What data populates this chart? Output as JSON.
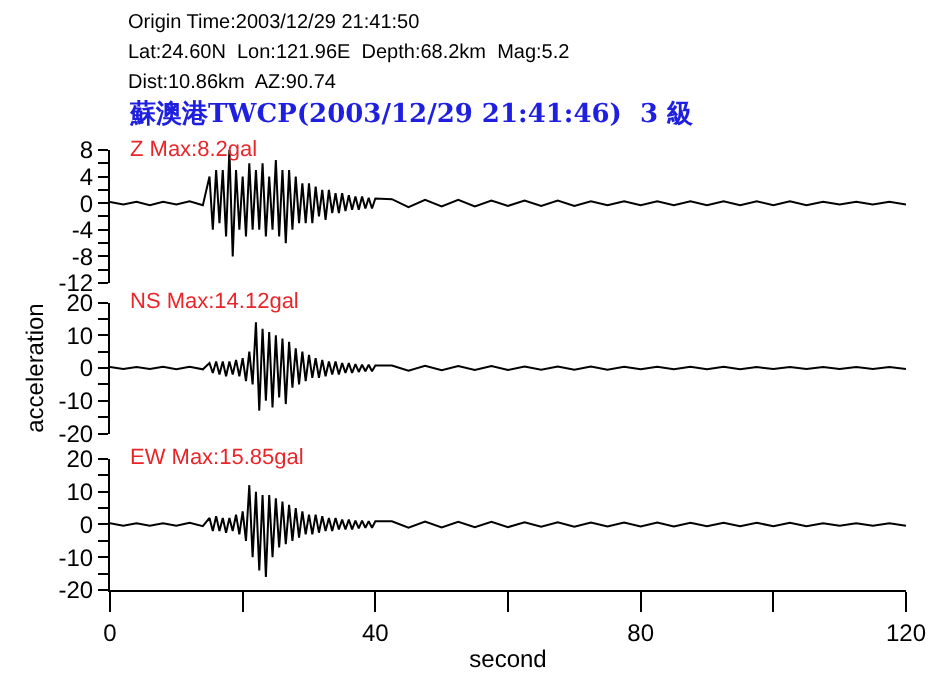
{
  "chart_data": [
    {
      "type": "line",
      "title": "蘇澳港TWCP(2003/12/29 21:41:46)  3 級",
      "annotations": [
        "Origin Time:2003/12/29 21:41:50",
        "Lat:24.60N  Lon:121.96E  Depth:68.2km  Mag:5.2",
        "Dist:10.86km  AZ:90.74",
        "Z Max:8.2gal"
      ],
      "x": [
        0,
        2,
        4,
        6,
        8,
        10,
        12,
        14,
        15,
        15.5,
        16,
        16.5,
        17,
        17.5,
        18,
        18.5,
        19,
        19.5,
        20,
        20.5,
        21,
        21.5,
        22,
        22.5,
        23,
        23.5,
        24,
        24.5,
        25,
        25.5,
        26,
        26.5,
        27,
        27.5,
        28,
        28.5,
        29,
        29.5,
        30,
        30.5,
        31,
        31.5,
        32,
        32.5,
        33,
        33.5,
        34,
        34.5,
        35,
        35.5,
        36,
        36.5,
        37,
        37.5,
        38,
        38.5,
        39,
        39.5,
        40,
        42.5,
        45,
        47.5,
        50,
        52.5,
        55,
        57.5,
        60,
        62.5,
        65,
        67.5,
        70,
        72.5,
        75,
        77.5,
        80,
        82.5,
        85,
        87.5,
        90,
        92.5,
        95,
        97.5,
        100,
        102.5,
        105,
        107.5,
        110,
        112.5,
        115,
        117.5,
        120
      ],
      "series": [
        {
          "color": "#000000",
          "values": [
            0.2,
            -0.2,
            0.2,
            -0.3,
            0.2,
            -0.2,
            0.3,
            -0.3,
            4,
            -4,
            5,
            -3,
            5,
            -5,
            8,
            -8,
            5,
            -4,
            4,
            -5,
            6,
            -4,
            5,
            -4,
            6,
            -5,
            4,
            -4,
            6.5,
            -5,
            5,
            -6,
            5,
            -4,
            4,
            -3,
            3,
            -3,
            3,
            -3,
            2.5,
            -2,
            2,
            -2.5,
            2,
            -1.5,
            1.5,
            -1.5,
            1.5,
            -1.2,
            1.2,
            -1,
            1,
            -1,
            1,
            -0.8,
            0.8,
            -0.8,
            0.7,
            0.6,
            -0.6,
            0.5,
            -0.5,
            0.5,
            -0.5,
            0.4,
            -0.4,
            0.4,
            -0.4,
            0.4,
            -0.4,
            0.3,
            -0.3,
            0.3,
            -0.3,
            0.3,
            -0.3,
            0.3,
            -0.3,
            0.3,
            -0.3,
            0.3,
            -0.3,
            0.3,
            -0.3,
            0.2,
            -0.2,
            0.2,
            -0.2,
            0.2,
            -0.2
          ]
        }
      ],
      "xlim": [
        0,
        120
      ],
      "ylim": [
        -12,
        8
      ],
      "yticks": [
        -12,
        {
          "value": -10,
          "label": null
        },
        -8,
        {
          "value": -6,
          "label": null
        },
        -4,
        {
          "value": -2,
          "label": null
        },
        0,
        {
          "value": 2,
          "label": null
        },
        4,
        {
          "value": 6,
          "label": null
        },
        8
      ],
      "tick_labels": "y",
      "marker": "none",
      "line_style": "solid"
    },
    {
      "type": "line",
      "ylabel": "acceleration",
      "annotations": [
        "NS Max:14.12gal"
      ],
      "x": [
        0,
        2,
        4,
        6,
        8,
        10,
        12,
        14,
        15,
        15.5,
        16,
        16.5,
        17,
        17.5,
        18,
        18.5,
        19,
        19.5,
        20,
        20.5,
        21,
        21.5,
        22,
        22.5,
        23,
        23.5,
        24,
        24.5,
        25,
        25.5,
        26,
        26.5,
        27,
        27.5,
        28,
        28.5,
        29,
        29.5,
        30,
        30.5,
        31,
        31.5,
        32,
        32.5,
        33,
        33.5,
        34,
        34.5,
        35,
        35.5,
        36,
        36.5,
        37,
        37.5,
        38,
        38.5,
        39,
        39.5,
        40,
        42.5,
        45,
        47.5,
        50,
        52.5,
        55,
        57.5,
        60,
        62.5,
        65,
        67.5,
        70,
        72.5,
        75,
        77.5,
        80,
        82.5,
        85,
        87.5,
        90,
        92.5,
        95,
        97.5,
        100,
        102.5,
        105,
        107.5,
        110,
        112.5,
        115,
        117.5,
        120
      ],
      "series": [
        {
          "color": "#000000",
          "values": [
            0.3,
            -0.3,
            0.3,
            -0.3,
            0.4,
            -0.4,
            0.4,
            -0.4,
            1.5,
            -1.5,
            2,
            -2,
            2,
            -2.5,
            2,
            -2,
            2.5,
            -2.5,
            3,
            -4,
            5,
            -5,
            14,
            -13,
            12,
            -10,
            11,
            -12,
            10,
            -9,
            9,
            -11,
            8,
            -6,
            6,
            -5,
            5,
            -4,
            4,
            -3,
            3,
            -3,
            2.5,
            -2.5,
            2,
            -2,
            2,
            -2,
            1.5,
            -1.5,
            1.5,
            -1.5,
            1.2,
            -1.2,
            1,
            -1,
            1,
            -1,
            0.8,
            0.8,
            -0.8,
            0.7,
            -0.7,
            0.6,
            -0.6,
            0.6,
            -0.6,
            0.5,
            -0.5,
            0.5,
            -0.5,
            0.5,
            -0.5,
            0.4,
            -0.4,
            0.4,
            -0.4,
            0.4,
            -0.4,
            0.4,
            -0.4,
            0.3,
            -0.3,
            0.3,
            -0.3,
            0.3,
            -0.3,
            0.3,
            -0.3,
            0.3,
            -0.3
          ]
        }
      ],
      "xlim": [
        0,
        120
      ],
      "ylim": [
        -20,
        20
      ],
      "yticks": [
        -20,
        {
          "value": -15,
          "label": null
        },
        -10,
        {
          "value": -5,
          "label": null
        },
        0,
        {
          "value": 5,
          "label": null
        },
        10,
        {
          "value": 15,
          "label": null
        },
        20
      ],
      "tick_labels": "y",
      "marker": "none",
      "line_style": "solid"
    },
    {
      "type": "line",
      "xlabel": "second",
      "annotations": [
        "EW Max:15.85gal"
      ],
      "x": [
        0,
        2,
        4,
        6,
        8,
        10,
        12,
        14,
        15,
        15.5,
        16,
        16.5,
        17,
        17.5,
        18,
        18.5,
        19,
        19.5,
        20,
        20.5,
        21,
        21.5,
        22,
        22.5,
        23,
        23.5,
        24,
        24.5,
        25,
        25.5,
        26,
        26.5,
        27,
        27.5,
        28,
        28.5,
        29,
        29.5,
        30,
        30.5,
        31,
        31.5,
        32,
        32.5,
        33,
        33.5,
        34,
        34.5,
        35,
        35.5,
        36,
        36.5,
        37,
        37.5,
        38,
        38.5,
        39,
        39.5,
        40,
        42.5,
        45,
        47.5,
        50,
        52.5,
        55,
        57.5,
        60,
        62.5,
        65,
        67.5,
        70,
        72.5,
        75,
        77.5,
        80,
        82.5,
        85,
        87.5,
        90,
        92.5,
        95,
        97.5,
        100,
        102.5,
        105,
        107.5,
        110,
        112.5,
        115,
        117.5,
        120
      ],
      "series": [
        {
          "color": "#000000",
          "values": [
            0.4,
            -0.4,
            0.4,
            -0.4,
            0.4,
            -0.4,
            0.5,
            -0.5,
            2,
            -2,
            2.5,
            -2,
            2,
            -2.5,
            2,
            -2,
            3,
            -3,
            4,
            -5,
            12,
            -10,
            10,
            -14,
            9,
            -16,
            9,
            -10,
            8,
            -7,
            7,
            -6,
            6,
            -5,
            5,
            -4,
            4,
            -3,
            3,
            -3,
            3,
            -2.5,
            2.5,
            -2,
            2,
            -2,
            2,
            -1.5,
            1.5,
            -1.5,
            1.5,
            -1.5,
            1.2,
            -1.2,
            1.2,
            -1,
            1,
            -1,
            1,
            1,
            -1,
            0.9,
            -0.9,
            0.8,
            -0.8,
            0.8,
            -0.8,
            0.7,
            -0.7,
            0.7,
            -0.7,
            0.6,
            -0.6,
            0.6,
            -0.6,
            0.6,
            -0.6,
            0.5,
            -0.5,
            0.5,
            -0.5,
            0.5,
            -0.5,
            0.5,
            -0.5,
            0.4,
            -0.4,
            0.4,
            -0.4,
            0.4,
            -0.4
          ]
        }
      ],
      "xlim": [
        0,
        120
      ],
      "xticks": [
        0,
        {
          "value": 20,
          "label": null
        },
        40,
        {
          "value": 60,
          "label": null
        },
        80,
        {
          "value": 100,
          "label": null
        },
        120
      ],
      "ylim": [
        -20,
        20
      ],
      "yticks": [
        -20,
        {
          "value": -15,
          "label": null
        },
        -10,
        {
          "value": -5,
          "label": null
        },
        0,
        {
          "value": 5,
          "label": null
        },
        10,
        {
          "value": 15,
          "label": null
        },
        20
      ],
      "marker": "none",
      "line_style": "solid"
    }
  ]
}
